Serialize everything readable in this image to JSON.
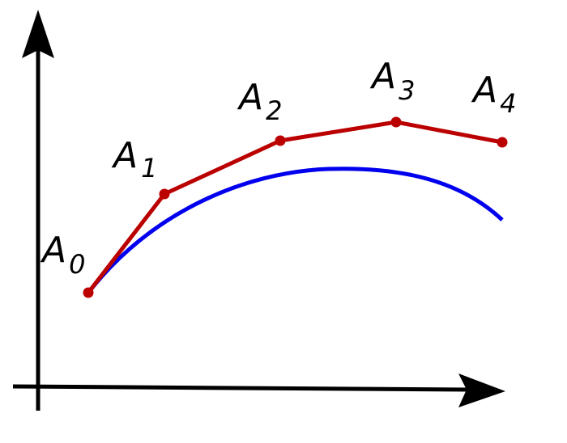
{
  "diagram": {
    "colors": {
      "axes": "#000000",
      "polyline": "#bb0000",
      "curve": "#0000ee"
    },
    "points": [
      {
        "letter": "A",
        "index": "0"
      },
      {
        "letter": "A",
        "index": "1"
      },
      {
        "letter": "A",
        "index": "2"
      },
      {
        "letter": "A",
        "index": "3"
      },
      {
        "letter": "A",
        "index": "4"
      }
    ]
  }
}
